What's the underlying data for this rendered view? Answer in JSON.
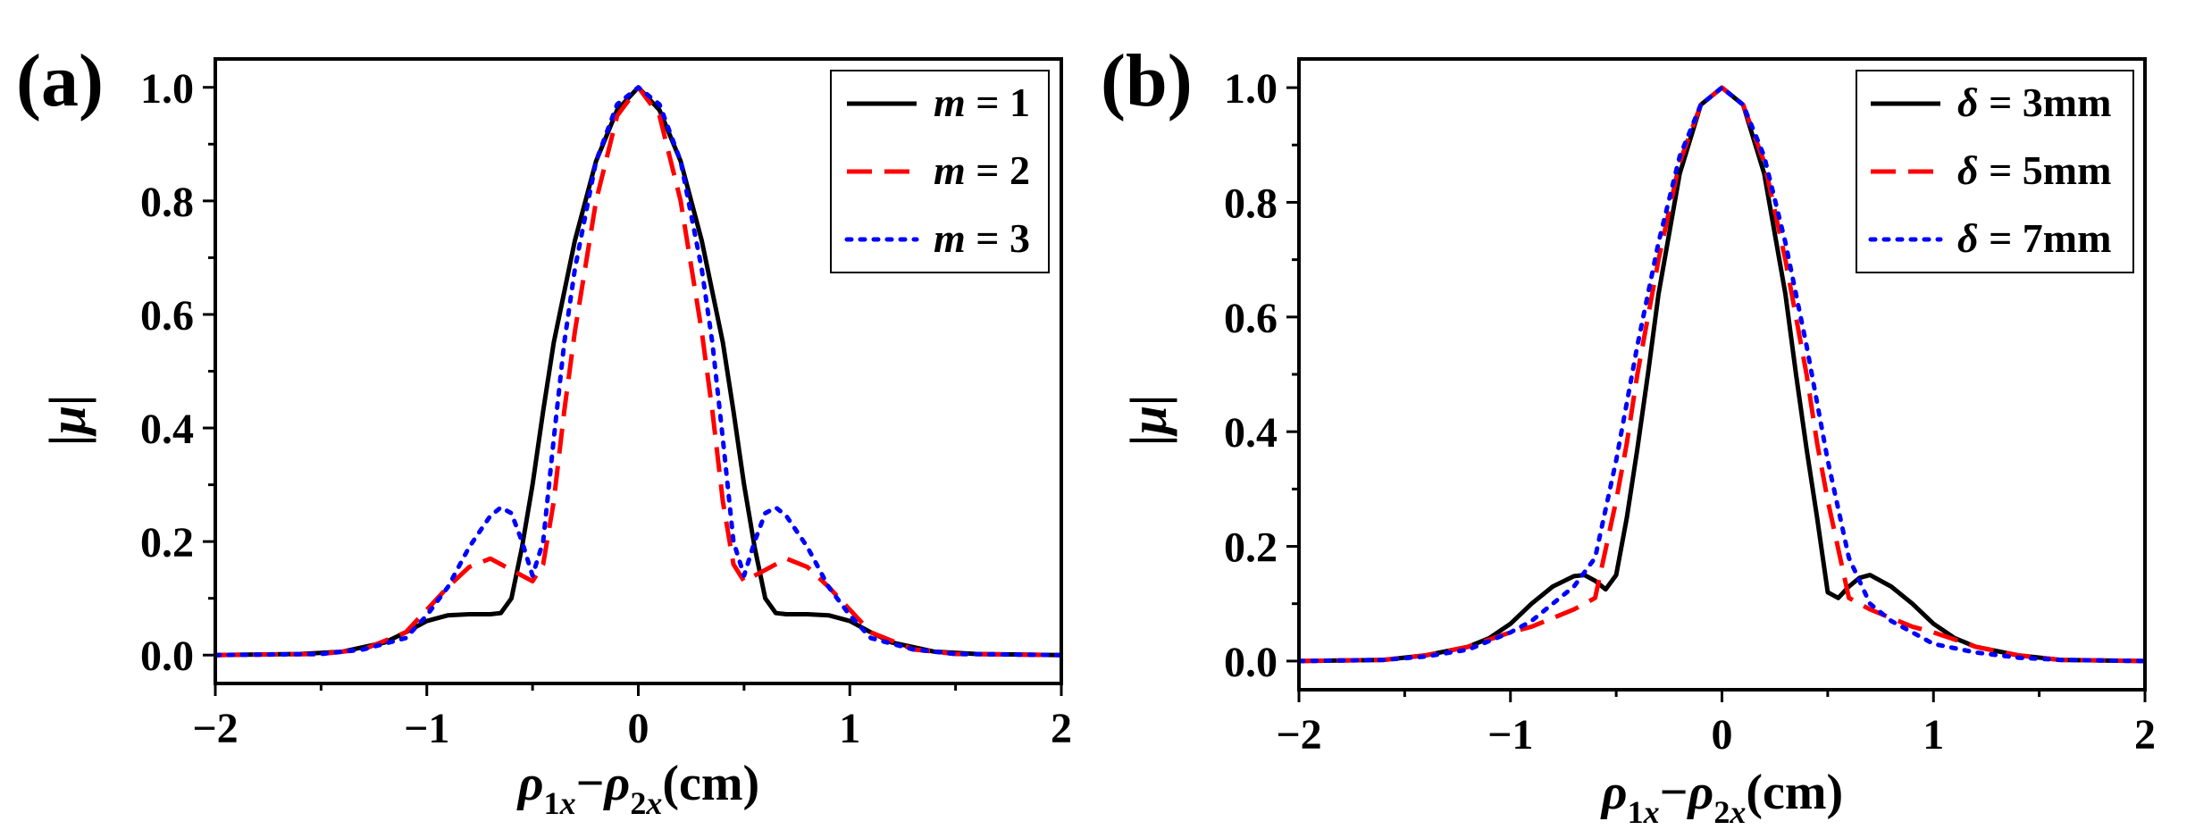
{
  "panels_colors": {
    "black": "#000000",
    "red": "#ff0000",
    "blue": "#0000ff"
  },
  "chart_data": [
    {
      "type": "line",
      "panel_label": "(a)",
      "xlabel": "ρ1x−ρ2x(cm)",
      "ylabel": "|μ|",
      "xlim": [
        -2,
        2
      ],
      "ylim": [
        -0.05,
        1.05
      ],
      "xticks": [
        -2,
        -1,
        0,
        1,
        2
      ],
      "xtick_labels": [
        "−2",
        "−1",
        "0",
        "1",
        "2"
      ],
      "yticks": [
        0,
        0.2,
        0.4,
        0.6,
        0.8,
        1.0
      ],
      "ytick_labels": [
        "0.0",
        "0.2",
        "0.4",
        "0.6",
        "0.8",
        "1.0"
      ],
      "grid": false,
      "legend_position": "top-right",
      "series": [
        {
          "name": "m = 1",
          "legend_var": "m",
          "legend_val": " = 1",
          "color": "#000000",
          "style": "solid",
          "x": [
            -2,
            -1.6,
            -1.4,
            -1.2,
            -1.1,
            -1.0,
            -0.9,
            -0.8,
            -0.7,
            -0.65,
            -0.6,
            -0.55,
            -0.5,
            -0.45,
            -0.4,
            -0.3,
            -0.2,
            -0.1,
            0,
            0.1,
            0.2,
            0.3,
            0.4,
            0.45,
            0.5,
            0.55,
            0.6,
            0.65,
            0.7,
            0.8,
            0.9,
            1.0,
            1.1,
            1.2,
            1.4,
            1.6,
            2
          ],
          "y": [
            0.0,
            0.002,
            0.006,
            0.022,
            0.04,
            0.06,
            0.07,
            0.072,
            0.072,
            0.074,
            0.1,
            0.19,
            0.3,
            0.43,
            0.55,
            0.73,
            0.87,
            0.96,
            1.0,
            0.96,
            0.87,
            0.73,
            0.55,
            0.43,
            0.3,
            0.19,
            0.1,
            0.074,
            0.072,
            0.072,
            0.07,
            0.06,
            0.04,
            0.022,
            0.006,
            0.002,
            0.0
          ]
        },
        {
          "name": "m = 2",
          "legend_var": "m",
          "legend_val": " = 2",
          "color": "#ff0000",
          "style": "dashed",
          "x": [
            -2,
            -1.5,
            -1.3,
            -1.1,
            -1.0,
            -0.9,
            -0.8,
            -0.7,
            -0.6,
            -0.5,
            -0.45,
            -0.4,
            -0.35,
            -0.3,
            -0.2,
            -0.1,
            0,
            0.1,
            0.2,
            0.3,
            0.35,
            0.4,
            0.45,
            0.5,
            0.6,
            0.7,
            0.8,
            0.9,
            1.0,
            1.1,
            1.3,
            1.5,
            2
          ],
          "y": [
            0.0,
            0.002,
            0.01,
            0.04,
            0.08,
            0.12,
            0.155,
            0.17,
            0.15,
            0.13,
            0.16,
            0.27,
            0.43,
            0.57,
            0.8,
            0.95,
            1.0,
            0.95,
            0.8,
            0.57,
            0.43,
            0.27,
            0.16,
            0.13,
            0.15,
            0.17,
            0.155,
            0.12,
            0.08,
            0.04,
            0.01,
            0.002,
            0.0
          ]
        },
        {
          "name": "m = 3",
          "legend_var": "m",
          "legend_val": " = 3",
          "color": "#0000ff",
          "style": "dotted",
          "x": [
            -2,
            -1.5,
            -1.3,
            -1.1,
            -1.0,
            -0.9,
            -0.8,
            -0.7,
            -0.65,
            -0.6,
            -0.55,
            -0.5,
            -0.45,
            -0.4,
            -0.35,
            -0.3,
            -0.2,
            -0.1,
            0,
            0.1,
            0.2,
            0.3,
            0.35,
            0.4,
            0.45,
            0.5,
            0.55,
            0.6,
            0.65,
            0.7,
            0.8,
            0.9,
            1.0,
            1.1,
            1.3,
            1.5,
            2
          ],
          "y": [
            0.0,
            0.002,
            0.01,
            0.03,
            0.07,
            0.12,
            0.19,
            0.245,
            0.26,
            0.25,
            0.2,
            0.14,
            0.2,
            0.38,
            0.55,
            0.68,
            0.87,
            0.97,
            1.0,
            0.97,
            0.87,
            0.68,
            0.55,
            0.38,
            0.2,
            0.14,
            0.2,
            0.25,
            0.26,
            0.245,
            0.19,
            0.12,
            0.07,
            0.03,
            0.01,
            0.002,
            0.0
          ]
        }
      ]
    },
    {
      "type": "line",
      "panel_label": "(b)",
      "xlabel": "ρ1x−ρ2x(cm)",
      "ylabel": "|μ|",
      "xlim": [
        -2,
        2
      ],
      "ylim": [
        -0.05,
        1.05
      ],
      "xticks": [
        -2,
        -1,
        0,
        1,
        2
      ],
      "xtick_labels": [
        "−2",
        "−1",
        "0",
        "1",
        "2"
      ],
      "yticks": [
        0,
        0.2,
        0.4,
        0.6,
        0.8,
        1.0
      ],
      "ytick_labels": [
        "0.0",
        "0.2",
        "0.4",
        "0.6",
        "0.8",
        "1.0"
      ],
      "grid": false,
      "legend_position": "top-right",
      "series": [
        {
          "name": "δ = 3mm",
          "legend_var": "δ",
          "legend_val": " = 3mm",
          "color": "#000000",
          "style": "solid",
          "x": [
            -2,
            -1.6,
            -1.4,
            -1.2,
            -1.1,
            -1.0,
            -0.9,
            -0.8,
            -0.7,
            -0.65,
            -0.6,
            -0.55,
            -0.5,
            -0.45,
            -0.4,
            -0.35,
            -0.3,
            -0.2,
            -0.1,
            0,
            0.1,
            0.2,
            0.3,
            0.35,
            0.4,
            0.45,
            0.5,
            0.55,
            0.6,
            0.65,
            0.7,
            0.8,
            0.9,
            1.0,
            1.1,
            1.2,
            1.4,
            1.6,
            2
          ],
          "y": [
            0.0,
            0.002,
            0.01,
            0.025,
            0.04,
            0.065,
            0.1,
            0.13,
            0.148,
            0.15,
            0.14,
            0.125,
            0.15,
            0.25,
            0.37,
            0.5,
            0.64,
            0.85,
            0.97,
            1.0,
            0.97,
            0.85,
            0.64,
            0.5,
            0.37,
            0.25,
            0.12,
            0.11,
            0.13,
            0.145,
            0.15,
            0.13,
            0.1,
            0.065,
            0.04,
            0.025,
            0.01,
            0.002,
            0.0
          ]
        },
        {
          "name": "δ = 5mm",
          "legend_var": "δ",
          "legend_val": " = 5mm",
          "color": "#ff0000",
          "style": "dashed",
          "x": [
            -2,
            -1.6,
            -1.4,
            -1.2,
            -1.0,
            -0.9,
            -0.8,
            -0.7,
            -0.6,
            -0.5,
            -0.45,
            -0.4,
            -0.3,
            -0.2,
            -0.1,
            0,
            0.1,
            0.2,
            0.3,
            0.4,
            0.45,
            0.5,
            0.6,
            0.7,
            0.8,
            0.9,
            1.0,
            1.2,
            1.4,
            1.6,
            2
          ],
          "y": [
            0.0,
            0.002,
            0.01,
            0.025,
            0.05,
            0.06,
            0.075,
            0.09,
            0.11,
            0.28,
            0.38,
            0.5,
            0.7,
            0.87,
            0.97,
            1.0,
            0.97,
            0.87,
            0.7,
            0.5,
            0.38,
            0.28,
            0.11,
            0.09,
            0.075,
            0.06,
            0.05,
            0.025,
            0.01,
            0.002,
            0.0
          ]
        },
        {
          "name": "δ = 7mm",
          "legend_var": "δ",
          "legend_val": " = 7mm",
          "color": "#0000ff",
          "style": "dotted",
          "x": [
            -2,
            -1.6,
            -1.4,
            -1.2,
            -1.0,
            -0.9,
            -0.8,
            -0.7,
            -0.6,
            -0.5,
            -0.4,
            -0.3,
            -0.2,
            -0.1,
            0,
            0.1,
            0.2,
            0.3,
            0.4,
            0.5,
            0.6,
            0.7,
            0.8,
            0.9,
            1.0,
            1.2,
            1.4,
            1.6,
            2
          ],
          "y": [
            0.0,
            0.002,
            0.008,
            0.02,
            0.05,
            0.07,
            0.1,
            0.13,
            0.18,
            0.35,
            0.55,
            0.73,
            0.88,
            0.97,
            1.0,
            0.97,
            0.88,
            0.73,
            0.55,
            0.35,
            0.18,
            0.1,
            0.07,
            0.05,
            0.03,
            0.015,
            0.006,
            0.002,
            0.0
          ]
        }
      ]
    }
  ]
}
